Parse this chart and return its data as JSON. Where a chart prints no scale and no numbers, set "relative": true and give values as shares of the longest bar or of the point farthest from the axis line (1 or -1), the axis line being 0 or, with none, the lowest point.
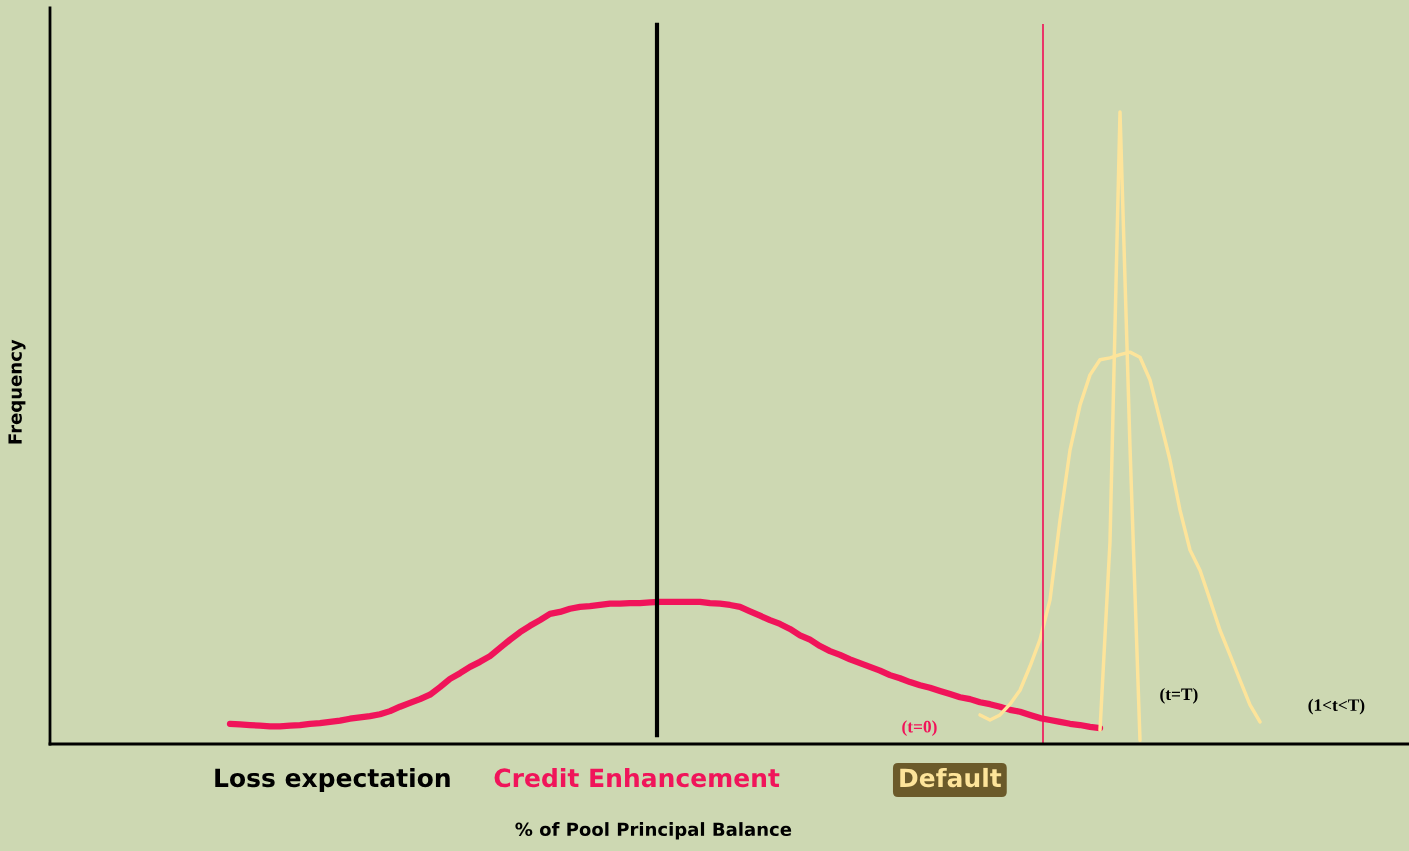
{
  "chart_data": {
    "type": "line",
    "relative": true,
    "xlabel": "% of Pool Principal Balance",
    "ylabel": "Frequency",
    "categories": [
      null,
      null,
      null,
      null,
      null,
      null,
      null,
      null,
      null,
      null,
      null,
      null,
      null,
      null,
      null,
      null,
      null,
      null,
      null,
      null,
      null,
      null,
      null,
      null,
      null,
      null,
      null,
      null,
      null,
      null,
      null,
      null,
      null,
      null,
      null,
      null,
      null,
      null,
      null,
      null,
      null,
      null,
      null,
      null,
      null,
      null,
      null,
      null,
      null,
      null,
      null,
      null,
      null,
      null,
      null,
      null,
      null,
      null,
      null,
      null,
      null,
      null,
      null,
      null,
      null,
      null,
      null,
      null,
      null,
      null,
      null,
      null,
      null,
      null,
      null,
      null,
      null,
      null,
      null,
      null,
      null,
      null,
      null,
      null,
      null,
      null,
      null,
      null,
      null,
      null,
      null,
      null,
      null,
      null,
      null,
      null,
      null,
      null,
      null,
      null,
      null,
      null,
      null,
      null,
      null,
      null,
      null,
      null,
      null,
      null,
      null,
      null,
      null,
      null,
      null,
      null,
      null,
      null,
      null,
      null,
      null,
      null,
      null,
      null,
      null,
      null,
      null,
      null,
      null,
      null,
      null,
      null,
      null,
      null,
      null,
      null
    ],
    "series": [
      {
        "name": "(t=0)",
        "color": "#f0145a",
        "values": [
          null,
          null,
          null,
          null,
          null,
          null,
          null,
          null,
          null,
          null,
          null,
          null,
          null,
          null,
          null,
          null,
          null,
          null,
          0.032,
          0.031,
          0.03,
          0.029,
          0.028,
          0.028,
          0.029,
          0.03,
          0.032,
          0.033,
          0.035,
          0.037,
          0.04,
          0.042,
          0.044,
          0.047,
          0.052,
          0.059,
          0.065,
          0.071,
          0.078,
          0.09,
          0.103,
          0.112,
          0.122,
          0.13,
          0.139,
          0.152,
          0.165,
          0.177,
          0.187,
          0.196,
          0.206,
          0.209,
          0.214,
          0.217,
          0.218,
          0.22,
          0.222,
          0.222,
          0.223,
          0.223,
          0.224,
          0.225,
          0.225,
          0.225,
          0.225,
          0.225,
          0.223,
          0.222,
          0.22,
          0.217,
          0.21,
          0.203,
          0.196,
          0.19,
          0.182,
          0.172,
          0.165,
          0.155,
          0.147,
          0.141,
          0.134,
          0.128,
          0.122,
          0.116,
          0.109,
          0.104,
          0.098,
          0.093,
          0.089,
          0.084,
          0.079,
          0.074,
          0.071,
          0.066,
          0.063,
          0.059,
          0.054,
          0.051,
          0.046,
          0.041,
          0.038,
          0.035,
          0.032,
          0.03,
          0.027,
          0.025,
          null,
          null,
          null,
          null,
          null,
          null,
          null,
          null,
          null,
          null,
          null,
          null,
          null,
          null,
          null,
          null,
          null,
          null,
          null,
          null,
          null,
          null,
          null,
          null,
          null,
          null,
          null,
          null,
          null,
          null
        ]
      },
      {
        "name": "(t=T)",
        "color": "#fde49a",
        "values": [
          null,
          null,
          null,
          null,
          null,
          null,
          null,
          null,
          null,
          null,
          null,
          null,
          null,
          null,
          null,
          null,
          null,
          null,
          null,
          null,
          null,
          null,
          null,
          null,
          null,
          null,
          null,
          null,
          null,
          null,
          null,
          null,
          null,
          null,
          null,
          null,
          null,
          null,
          null,
          null,
          null,
          null,
          null,
          null,
          null,
          null,
          null,
          null,
          null,
          null,
          null,
          null,
          null,
          null,
          null,
          null,
          null,
          null,
          null,
          null,
          null,
          null,
          null,
          null,
          null,
          null,
          null,
          null,
          null,
          null,
          null,
          null,
          null,
          null,
          null,
          null,
          null,
          null,
          null,
          null,
          null,
          null,
          null,
          null,
          null,
          null,
          null,
          null,
          null,
          null,
          null,
          null,
          null,
          null,
          null,
          null,
          null,
          null,
          null,
          null,
          null,
          null,
          null,
          null,
          null,
          0.022,
          0.32,
          1,
          0.47,
          0.006,
          null,
          null,
          null,
          null,
          null,
          null,
          null,
          null,
          null,
          null,
          null,
          null,
          null,
          null,
          null,
          null,
          null,
          null,
          null,
          null,
          null,
          null,
          null,
          null,
          null,
          null
        ]
      },
      {
        "name": "(1<t<T)",
        "color": "#fde49a",
        "values": [
          null,
          null,
          null,
          null,
          null,
          null,
          null,
          null,
          null,
          null,
          null,
          null,
          null,
          null,
          null,
          null,
          null,
          null,
          null,
          null,
          null,
          null,
          null,
          null,
          null,
          null,
          null,
          null,
          null,
          null,
          null,
          null,
          null,
          null,
          null,
          null,
          null,
          null,
          null,
          null,
          null,
          null,
          null,
          null,
          null,
          null,
          null,
          null,
          null,
          null,
          null,
          null,
          null,
          null,
          null,
          null,
          null,
          null,
          null,
          null,
          null,
          null,
          null,
          null,
          null,
          null,
          null,
          null,
          null,
          null,
          null,
          null,
          null,
          null,
          null,
          null,
          null,
          null,
          null,
          null,
          null,
          null,
          null,
          null,
          null,
          null,
          null,
          null,
          null,
          null,
          null,
          null,
          null,
          0.046,
          0.038,
          0.046,
          0.063,
          0.085,
          0.123,
          0.165,
          0.228,
          0.354,
          0.465,
          0.536,
          0.584,
          0.608,
          0.611,
          0.616,
          0.62,
          0.612,
          0.576,
          0.513,
          0.449,
          0.37,
          0.307,
          0.275,
          0.228,
          0.18,
          0.141,
          0.101,
          0.062,
          0.035,
          null,
          null,
          null,
          null,
          null,
          null,
          null,
          null,
          null,
          null,
          null,
          null,
          null,
          null
        ]
      }
    ],
    "annotations": [
      "Loss expectation",
      "Credit Enhancement",
      "Default"
    ],
    "legend": false,
    "grid": false
  }
}
